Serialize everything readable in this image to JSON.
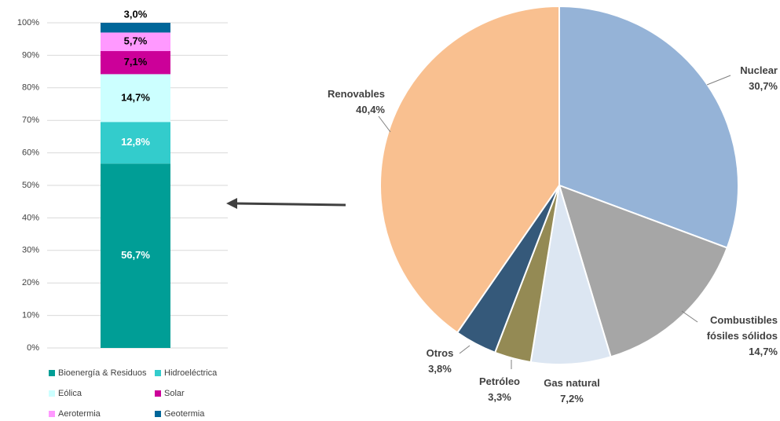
{
  "chart_data": [
    {
      "type": "bar",
      "stacked": true,
      "categories": [
        null
      ],
      "series": [
        {
          "name": "Bioenergía & Residuos",
          "color": "#009e96",
          "values": [
            56.7
          ],
          "value_labels": [
            "56,7%"
          ]
        },
        {
          "name": "Hidroeléctrica",
          "color": "#33cccc",
          "values": [
            12.8
          ],
          "value_labels": [
            "12,8%"
          ]
        },
        {
          "name": "Eólica",
          "color": "#ccffff",
          "values": [
            14.7
          ],
          "value_labels": [
            "14,7%"
          ]
        },
        {
          "name": "Solar",
          "color": "#cc0099",
          "values": [
            7.1
          ],
          "value_labels": [
            "7,1%"
          ]
        },
        {
          "name": "Aerotermia",
          "color": "#ff99ff",
          "values": [
            5.7
          ],
          "value_labels": [
            "5,7%"
          ]
        },
        {
          "name": "Geotermia",
          "color": "#006699",
          "values": [
            3.0
          ],
          "value_labels": [
            "3,0%"
          ]
        }
      ],
      "ylim": [
        0,
        100
      ],
      "yticks": [
        {
          "value": 0,
          "label": "0%"
        },
        {
          "value": 10,
          "label": "10%"
        },
        {
          "value": 20,
          "label": "20%"
        },
        {
          "value": 30,
          "label": "30%"
        },
        {
          "value": 40,
          "label": "40%"
        },
        {
          "value": 50,
          "label": "50%"
        },
        {
          "value": 60,
          "label": "60%"
        },
        {
          "value": 70,
          "label": "70%"
        },
        {
          "value": 80,
          "label": "80%"
        },
        {
          "value": 90,
          "label": "90%"
        },
        {
          "value": 100,
          "label": "100%"
        }
      ],
      "grid": true
    },
    {
      "type": "pie",
      "categories": [
        "Nuclear",
        "Combustibles fósiles sólidos",
        "Gas natural",
        "Petróleo",
        "Otros",
        "Renovables"
      ],
      "values": [
        30.7,
        14.7,
        7.2,
        3.3,
        3.8,
        40.4
      ],
      "value_labels": [
        "30,7%",
        "14,7%",
        "7,2%",
        "3,3%",
        "3,8%",
        "40,4%"
      ],
      "colors": [
        "#95b3d7",
        "#a6a6a6",
        "#dce6f2",
        "#948a54",
        "#35597a",
        "#f9c090"
      ]
    }
  ]
}
